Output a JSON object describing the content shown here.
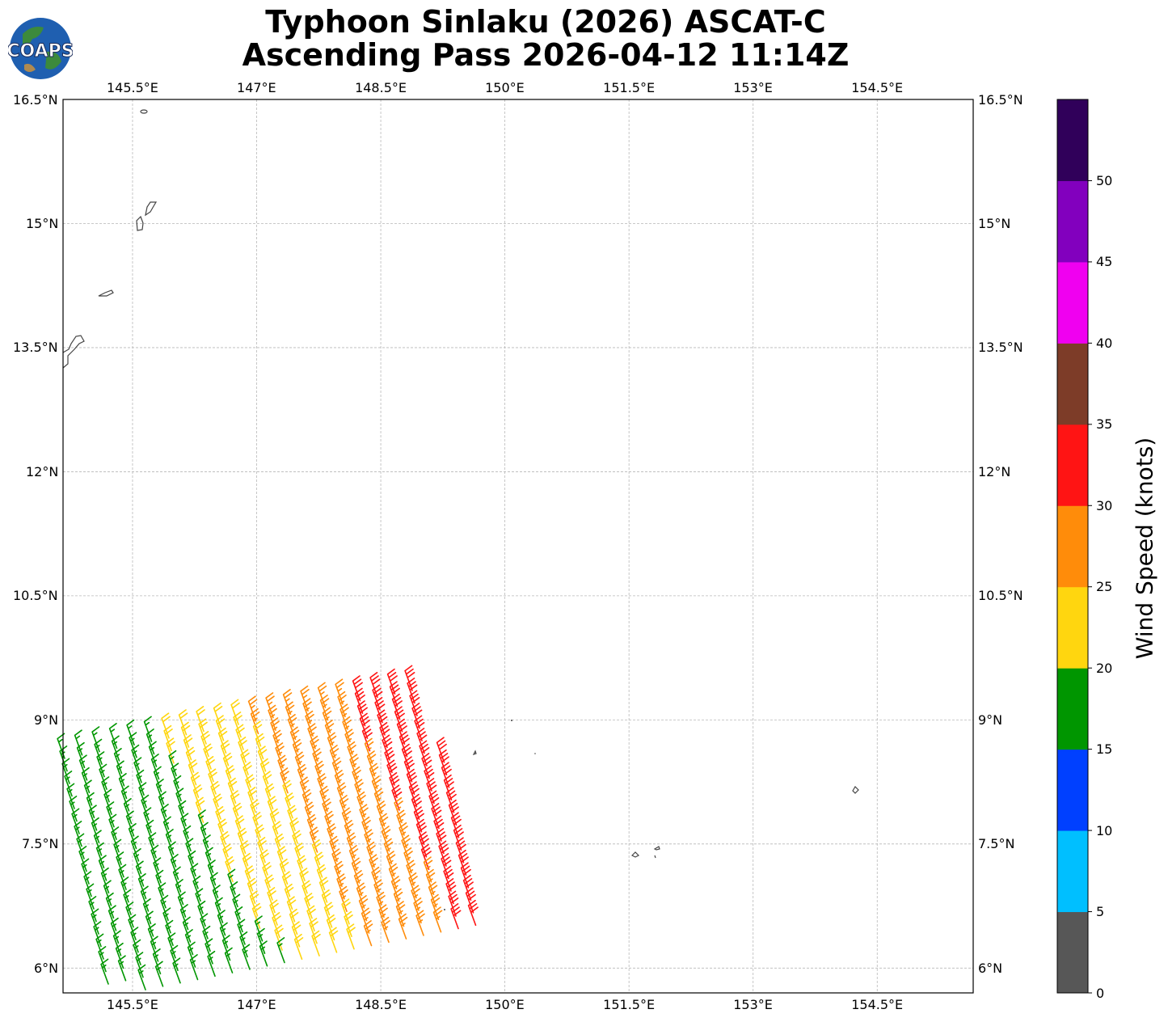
{
  "title": {
    "line1": "Typhoon Sinlaku (2026) ASCAT-C",
    "line2": "Ascending Pass 2026-04-12 11:14Z"
  },
  "logo": {
    "text": "COAPS",
    "icon": "globe-logo-icon"
  },
  "map": {
    "lon_range": [
      144.66,
      155.66
    ],
    "lat_range": [
      5.7,
      16.5
    ],
    "lon_ticks": [
      "145.5°E",
      "147°E",
      "148.5°E",
      "150°E",
      "151.5°E",
      "153°E",
      "154.5°E"
    ],
    "lat_ticks": [
      "16.5°N",
      "15°N",
      "13.5°N",
      "12°N",
      "10.5°N",
      "9°N",
      "7.5°N",
      "6°N"
    ],
    "gridlines": true,
    "coastline_color": "#444444"
  },
  "colorbar": {
    "label": "Wind Speed (knots)",
    "ticks": [
      "0",
      "5",
      "10",
      "15",
      "20",
      "25",
      "30",
      "35",
      "40",
      "45",
      "50"
    ],
    "colors": [
      "#575757",
      "#00bfff",
      "#0040ff",
      "#009600",
      "#ffd60f",
      "#ff8c0a",
      "#ff1414",
      "#7d3c28",
      "#f000f0",
      "#8200be",
      "#30005a"
    ]
  }
}
